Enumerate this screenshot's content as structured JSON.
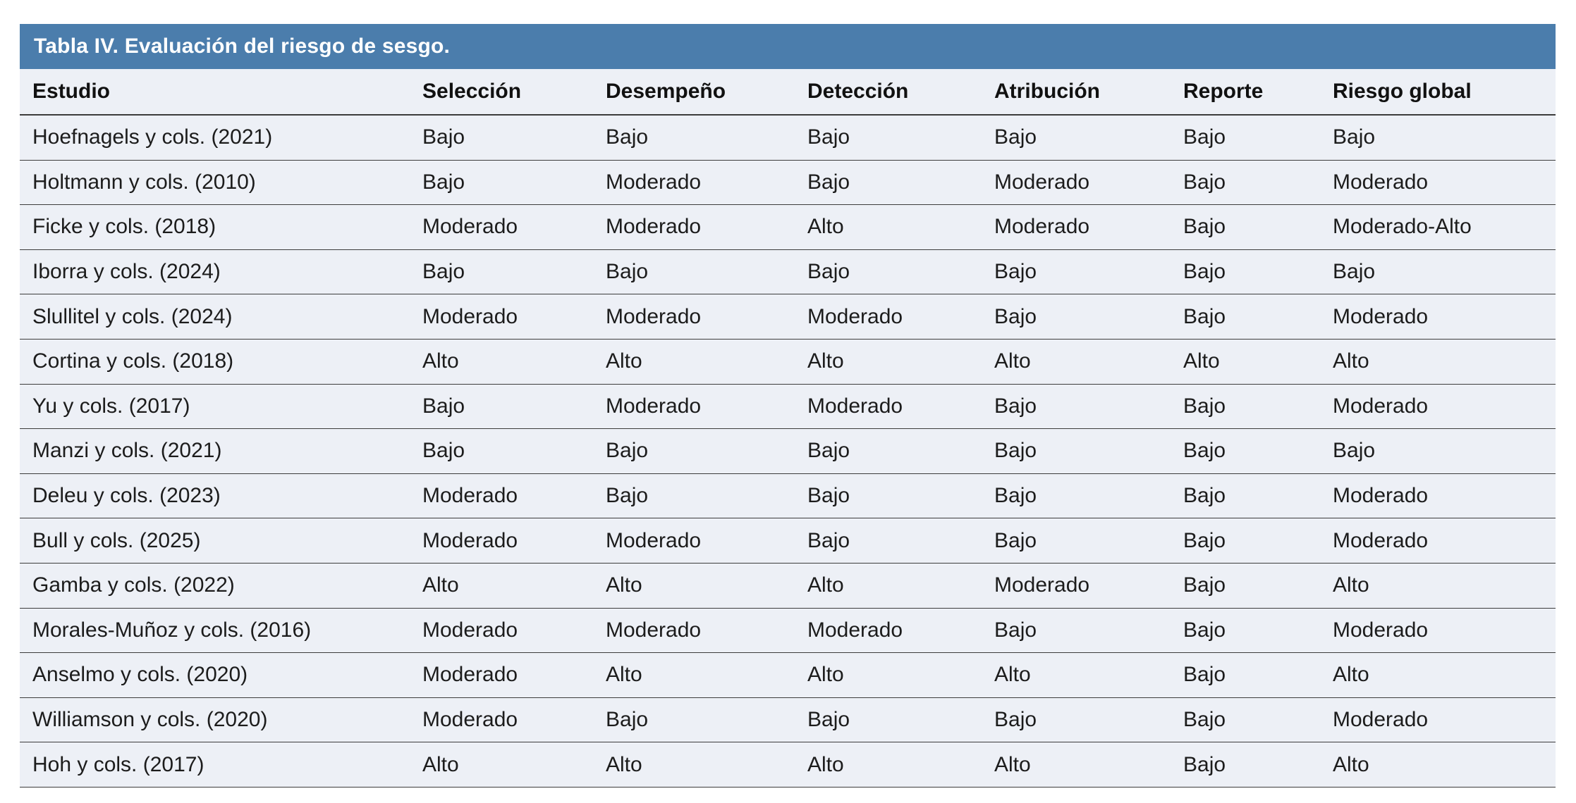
{
  "title": "Tabla IV. Evaluación del riesgo de sesgo.",
  "colors": {
    "title_bar_bg": "#4B7DAC",
    "row_bg": "#EDF0F6",
    "line": "#3c3c3c",
    "title_text": "#ffffff",
    "header_text": "#111111",
    "body_text": "#1c1c1c"
  },
  "table": {
    "columns": [
      "Estudio",
      "Selección",
      "Desempeño",
      "Detección",
      "Atribución",
      "Reporte",
      "Riesgo global"
    ],
    "rows": [
      {
        "estudio": "Hoefnagels y cols. (2021)",
        "values": [
          "Bajo",
          "Bajo",
          "Bajo",
          "Bajo",
          "Bajo",
          "Bajo"
        ]
      },
      {
        "estudio": "Holtmann y cols. (2010)",
        "values": [
          "Bajo",
          "Moderado",
          "Bajo",
          "Moderado",
          "Bajo",
          "Moderado"
        ]
      },
      {
        "estudio": "Ficke y cols. (2018)",
        "values": [
          "Moderado",
          "Moderado",
          "Alto",
          "Moderado",
          "Bajo",
          "Moderado-Alto"
        ]
      },
      {
        "estudio": "Iborra y cols. (2024)",
        "values": [
          "Bajo",
          "Bajo",
          "Bajo",
          "Bajo",
          "Bajo",
          "Bajo"
        ]
      },
      {
        "estudio": "Slullitel y cols. (2024)",
        "values": [
          "Moderado",
          "Moderado",
          "Moderado",
          "Bajo",
          "Bajo",
          "Moderado"
        ]
      },
      {
        "estudio": "Cortina y cols. (2018)",
        "values": [
          "Alto",
          "Alto",
          "Alto",
          "Alto",
          "Alto",
          "Alto"
        ]
      },
      {
        "estudio": "Yu y cols. (2017)",
        "values": [
          "Bajo",
          "Moderado",
          "Moderado",
          "Bajo",
          "Bajo",
          "Moderado"
        ]
      },
      {
        "estudio": "Manzi y cols. (2021)",
        "values": [
          "Bajo",
          "Bajo",
          "Bajo",
          "Bajo",
          "Bajo",
          "Bajo"
        ]
      },
      {
        "estudio": "Deleu y cols. (2023)",
        "values": [
          "Moderado",
          "Bajo",
          "Bajo",
          "Bajo",
          "Bajo",
          "Moderado"
        ]
      },
      {
        "estudio": "Bull y cols. (2025)",
        "values": [
          "Moderado",
          "Moderado",
          "Bajo",
          "Bajo",
          "Bajo",
          "Moderado"
        ]
      },
      {
        "estudio": "Gamba y cols. (2022)",
        "values": [
          "Alto",
          "Alto",
          "Alto",
          "Moderado",
          "Bajo",
          "Alto"
        ]
      },
      {
        "estudio": "Morales-Muñoz y cols. (2016)",
        "values": [
          "Moderado",
          "Moderado",
          "Moderado",
          "Bajo",
          "Bajo",
          "Moderado"
        ]
      },
      {
        "estudio": "Anselmo y cols. (2020)",
        "values": [
          "Moderado",
          "Alto",
          "Alto",
          "Alto",
          "Bajo",
          "Alto"
        ]
      },
      {
        "estudio": "Williamson y cols. (2020)",
        "values": [
          "Moderado",
          "Bajo",
          "Bajo",
          "Bajo",
          "Bajo",
          "Moderado"
        ]
      },
      {
        "estudio": "Hoh y cols. (2017)",
        "values": [
          "Alto",
          "Alto",
          "Alto",
          "Alto",
          "Bajo",
          "Alto"
        ]
      }
    ]
  }
}
